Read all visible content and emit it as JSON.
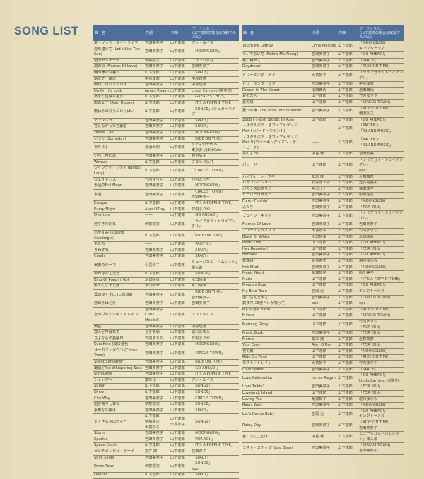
{
  "title": "SONG LIST",
  "headers": {
    "title": "曲　名",
    "lyricist": "作詞",
    "composer": "作曲",
    "artist": "アーティスト\n(山下達郎の場合は収録アルバム)"
  },
  "left_rows": [
    [
      "愛・イッツ・マイ・ライフ",
      "吉田美奈子",
      "山下達郎",
      "アン・ルイス"
    ],
    [
      "愛を描いて (Let's Kiss The Sun)",
      "吉田美奈子",
      "山下達郎",
      "「MOONGLOW」"
    ],
    [
      "愛のセレナーデ",
      "伊藤銀次",
      "山下達郎",
      "フランク永井"
    ],
    [
      "愛の炎 (Flames Of Love)",
      "吉田美奈子",
      "山下達郎",
      "吉田美奈子"
    ],
    [
      "朝の様な夕暮れ",
      "山下達郎",
      "山下達郎",
      "「SPACY」"
    ],
    [
      "朝まで一緒に",
      "中原理恵",
      "山下達郎",
      "中原理恵"
    ],
    [
      "明日にはグッドバイ",
      "吉田美奈子",
      "山下達郎",
      "中原理恵"
    ],
    [
      "Up On His Luck",
      "James Ragan",
      "山下達郎",
      "Linda Carriere (未発売)"
    ],
    [
      "あまく危険な香り",
      "山下達郎",
      "山下達郎",
      "「GREATEST HITS」"
    ],
    [
      "雨の女王 (Rain Queen)",
      "山下達郎",
      "山下達郎",
      "「IT'S A POPPIN' TIME」"
    ],
    [
      "雨は手のひらにいっぱい",
      "山下達郎",
      "山下達郎",
      "「SONGS」(シュガーベイブ)"
    ],
    [
      "アンブレラ",
      "吉田美奈子",
      "山下達郎",
      "「SPACY」"
    ],
    [
      "言えなかった言葉を",
      "吉田美奈子",
      "山下達郎",
      "「SPACY」"
    ],
    [
      "Yellow Cab",
      "吉田美奈子",
      "山下達郎",
      "「MOONGLOW」"
    ],
    [
      "いつか (Someday)",
      "吉田美奈子",
      "山下達郎",
      "「RIDE ON TIME」"
    ],
    [
      "祈り(O)",
      "加治木剛",
      "山下達郎",
      "ダディ竹千代 &\n東京おとぼけCats"
    ],
    [
      "いちご色の窓",
      "吉田美奈子",
      "山下達郎",
      "鹿沼弘子"
    ],
    [
      "Woman",
      "山下達郎",
      "山下達郎",
      "フランク永井"
    ],
    [
      "ウインディ・レディ (Windy Lady)",
      "山下達郎",
      "山下達郎",
      "「CIRCUS TOWN」"
    ],
    [
      "ウエイトレス",
      "竹内まりや",
      "山下達郎",
      "竹内まりや"
    ],
    [
      "永遠のFull Moon",
      "吉田美奈子",
      "山下達郎",
      "「MOONGLOW」"
    ],
    [
      "永遠に",
      "吉田美奈子",
      "山下達郎",
      "「CIRCUS TOWN」\n吉田美奈子"
    ],
    [
      "Escape",
      "山下達郎",
      "山下達郎",
      "「IT'S A POPPIN' TIME」"
    ],
    [
      "Every Night",
      "Alan O'Day",
      "山下達郎",
      "竹内まりや"
    ],
    [
      "Overture",
      "――",
      "山下達郎",
      "「GO AHEAD!」"
    ],
    [
      "遅すぎた別れ",
      "伊藤銀次",
      "山下達郎",
      "「ナイアガラ・トライアングル」"
    ],
    [
      "おやすみ (Kissing Goodnight)",
      "山下達郎",
      "山下達郎",
      "「RIDE ON TIME」"
    ],
    [
      "キスカ",
      "――",
      "山下達郎",
      "「PACIFIC」"
    ],
    [
      "きぬずれ",
      "吉田美奈子",
      "山下達郎",
      "「SPACY」"
    ],
    [
      "Candy",
      "吉田美奈子",
      "山下達郎",
      "「SPACY」"
    ],
    [
      "気楽のテーマ",
      "小島和子",
      "山下達郎",
      "ミュージカル「ハムレット」挿入歌"
    ],
    [
      "今日はなんだか",
      "山下達郎",
      "山下達郎",
      "「SONGS」"
    ],
    [
      "King Of Poppin' Roll",
      "水口晴幸",
      "山下達郎",
      "水口晴幸"
    ],
    [
      "キメてしまえば",
      "水口晴幸",
      "山下達郎",
      "水口晴幸"
    ],
    [
      "雲のゆくえに (Clouds)",
      "吉田美奈子",
      "山下達郎",
      "「RIDE ON TIME」\n吉田美奈子"
    ],
    [
      "恋の手ほどき",
      "吉田美奈子",
      "山下達郎",
      "吉田美奈子"
    ],
    [
      "恋のブギ・ウギ・トレイン",
      "吉田美奈子\nChris Mosdell",
      "山下達郎",
      "アン・ルイス"
    ],
    [
      "黄昏",
      "吉田美奈子",
      "山下達郎",
      "中原理恵"
    ],
    [
      "恋人と呼ばれて",
      "喜多条忠",
      "山下達郎",
      "堀川まゆみ"
    ],
    [
      "さよならの金曜日",
      "竹内まりや",
      "山下達郎",
      "竹内まりや"
    ],
    [
      "Sunshine (愛の金色)",
      "吉田美奈子",
      "山下達郎",
      "「MOONGLOW」"
    ],
    [
      "サーカス・タウン (Circus Town)",
      "吉田美奈子",
      "山下達郎",
      "「CIRCUS TOWN」"
    ],
    [
      "Silent Screamer",
      "吉田美奈子",
      "山下達郎",
      "「RIDE ON TIME」"
    ],
    [
      "潮騒 (The Whispering Sea)",
      "吉田美奈子",
      "山下達郎",
      "「GO AHEAD!」"
    ],
    [
      "Silhouette",
      "吉田美奈子",
      "山下達郎",
      "「IT'S A POPPIN' TIME」"
    ],
    [
      "シャンプー",
      "康珍化",
      "山下達郎",
      "アン・ルイス"
    ],
    [
      "Sugar",
      "山下達郎",
      "山下達郎",
      "「SONGS」"
    ],
    [
      "Show",
      "山下達郎",
      "山下達郎",
      "「SONGS」"
    ],
    [
      "City Way",
      "吉田美奈子",
      "山下達郎",
      "「CIRCUS TOWN」"
    ],
    [
      "過ぎ去りし日々",
      "伊藤銀次",
      "山下達郎",
      "「SONGS」"
    ],
    [
      "素敵な午後は",
      "吉田美奈子",
      "山下達郎",
      "「SPACY」"
    ],
    [
      "すてきなメロディー",
      "山下達郎\n伊藤銀次\n大貫妙子",
      "山下達郎\n大貫妙子",
      "「SONGS」"
    ],
    [
      "Storm",
      "吉田美奈子",
      "山下達郎",
      "「MOONGLOW」"
    ],
    [
      "Sparkle",
      "吉田美奈子",
      "山下達郎",
      "「FOR YOU」"
    ],
    [
      "Space Crush",
      "山下達郎",
      "山下達郎",
      "「IT'S A POPPIN' TIME」"
    ],
    [
      "センチメンタル・ボーイ",
      "荒井 康",
      "山下達郎",
      "桜田淳子"
    ],
    [
      "Solid Slider",
      "吉田美奈子",
      "山下達郎",
      "「SPACY」"
    ],
    [
      "Down Town",
      "伊藤銀次",
      "山下達郎",
      "「SONGS」\nepo"
    ],
    [
      "Dancer",
      "山下達郎",
      "山下達郎",
      "「SPACY」"
    ]
  ],
  "right_rows": [
    [
      "Touch Me Lightly",
      "Chris Mosdell",
      "山下達郎",
      "「MOONGLOW」\nキングトーンズ"
    ],
    [
      "ついておいで (Follow Me Along)",
      "吉田美奈子",
      "山下達郎",
      "「GO AHEAD!」"
    ],
    [
      "翼に乗せて",
      "吉田美奈子",
      "山下達郎",
      "「SPACY」"
    ],
    [
      "Daydream",
      "吉田美奈子",
      "山下達郎",
      "「RIDE ON TIME」"
    ],
    [
      "ドリーミング・デイ",
      "大貫妙子",
      "山下達郎",
      "「ナイアガラ・トライアングル」"
    ],
    [
      "ドリーミング・ラブ",
      "吉田美奈子",
      "山下達郎",
      "中原理恵"
    ],
    [
      "Dream In The Street",
      "池田典代",
      "山下達郎",
      "池田典代"
    ],
    [
      "夏の恋人",
      "山下達郎",
      "山下達郎",
      "竹内まりや"
    ],
    [
      "夏の陽",
      "山下達郎",
      "山下達郎",
      "「CIRCUS TOWN」"
    ],
    [
      "夏への扉 (The Door Into Summer)",
      "吉田美奈子",
      "山下達郎",
      "「RIDE ON TIME」\n難波弘之"
    ],
    [
      "2000トンの雨 (2000t Of Rain)",
      "山下達郎",
      "山下達郎",
      "「GO AHEAD!」"
    ],
    [
      "ノスタルジア・オブ・アイランド\nPart I (バード・ウインド)",
      "――",
      "山下達郎",
      "「PACIFIC」\n「ISLAND MUSIC」"
    ],
    [
      "ノスタルジア・オブ・アイランド\nPart II (ウォーキング・オン・ザ\n・ビーチ)",
      "――",
      "山下達郎",
      "「PACIFIC」\n「ISLAND MUSIC」"
    ],
    [
      "花のように",
      "中島 梓",
      "山下達郎",
      "岩崎宏美"
    ],
    [
      "パレード",
      "山下達郎",
      "山下達郎",
      "「ナイアガラ・トライアングル」\nepo"
    ],
    [
      "ハイティーン・ブギ",
      "松本 隆",
      "山下達郎",
      "近藤真彦"
    ],
    [
      "バイブレイション",
      "安井かずみ",
      "山下達郎",
      "笠井紀美子"
    ],
    [
      "バカンスの終りに",
      "島エイナ",
      "山下達郎",
      "桜田淳子"
    ],
    [
      "ヒーローはあなた",
      "吉田美奈子",
      "山下達郎",
      "中原理恵"
    ],
    [
      "Funky Flushin'",
      "吉田美奈子",
      "山下達郎",
      "「MOONGLOW」"
    ],
    [
      "ふたり",
      "吉田美奈子",
      "山下達郎",
      "「FOR YOU」"
    ],
    [
      "ブライン・キッド",
      "吉田美奈子",
      "山下達郎",
      "「ナイアガラ・トライアングル」"
    ],
    [
      "Flames Of Love",
      "吉田美奈子",
      "山下達郎",
      "吉田美奈子"
    ],
    [
      "ブルー・ホライズン",
      "大貫妙子",
      "山下達郎",
      "竹内まりや"
    ],
    [
      "Black Or White",
      "水口晴幸",
      "山下達郎",
      "水口晴幸"
    ],
    [
      "Paper Doll",
      "山下達郎",
      "山下達郎",
      "「GO AHEAD!」"
    ],
    [
      "Hey Reporter!",
      "山下達郎",
      "山下達郎",
      "「FOR YOU」"
    ],
    [
      "Bomber",
      "吉田美奈子",
      "山下達郎",
      "「GO AHEAD!」"
    ],
    [
      "花模様",
      "喜多条忠",
      "山下達郎",
      "堀川まゆみ"
    ],
    [
      "Hot Shot",
      "吉田美奈子",
      "山下達郎",
      "「MOONGLOW」"
    ],
    [
      "Magic Night",
      "竜真知子",
      "山下達郎",
      "原久美子"
    ],
    [
      "Marie",
      "山下達郎",
      "山下達郎",
      "「IT'S A POPPIN' TIME」"
    ],
    [
      "Monday Blue",
      "山下達郎",
      "山下達郎",
      "「GO AHEAD!」"
    ],
    [
      "My Blue Train",
      "吉岡 治",
      "山下達郎",
      "キングトーンズ"
    ],
    [
      "迷い込んだ街と",
      "吉田美奈子",
      "山下達郎",
      "「CIRCUS TOWN」"
    ],
    [
      "真夜中に8度ベルが鳴って",
      "epo",
      "山下達郎",
      "epo"
    ],
    [
      "My Sugar Babe",
      "山下達郎",
      "山下達郎",
      "「RIDE ON TIME」"
    ],
    [
      "Minnie",
      "山下達郎",
      "山下達郎",
      "「CIRCUS TOWN」"
    ],
    [
      "Morning Glory",
      "山下達郎",
      "山下達郎",
      "竹内まりや\n「FOR YOU」"
    ],
    [
      "Music Book",
      "吉田美奈子",
      "山下達郎",
      "「FOR YOU」"
    ],
    [
      "Momo",
      "松本 隆",
      "山下達郎",
      "近藤真彦"
    ],
    [
      "Your Eyes",
      "Alan O'Day",
      "山下達郎",
      "「FOR YOU」"
    ],
    [
      "夜の翼",
      "山下達郎",
      "山下達郎",
      "「MOONGLOW」"
    ],
    [
      "Ride On Time",
      "山下達郎",
      "山下達郎",
      "「RIDE ON TIME」"
    ],
    [
      "ラスト・トレイン",
      "大貫妙子",
      "山下達郎",
      "竹内まりや"
    ],
    [
      "Love Space",
      "吉田美奈子",
      "山下達郎",
      "「SPACY」"
    ],
    [
      "Love Celebration",
      "James Ragan",
      "山下達郎",
      "「GO AHEAD!」\nLinda Carriere (未発売)"
    ],
    [
      "Love Talkin'",
      "吉田美奈子",
      "山下達郎",
      "「FOR YOU」"
    ],
    [
      "Loveland, Island",
      "山下達郎",
      "山下達郎",
      "「FOR YOU」"
    ],
    [
      "Loving You",
      "竜真知子",
      "山下達郎",
      "堀川まゆみ"
    ],
    [
      "Rainy Walk",
      "吉田美奈子",
      "山下達郎",
      "「MOONGLOW」"
    ],
    [
      "Let's Dance Baby",
      "吉岡 治",
      "山下達郎",
      "「GO AHEAD!」\nキングトーンズ"
    ],
    [
      "Rainy Day",
      "吉田美奈子",
      "山下達郎",
      "「RIDE ON TIME」\n吉田美奈子"
    ],
    [
      "若いってことは",
      "中島 梓",
      "山下達郎",
      "ミュージカル「ハムレット」挿入歌"
    ],
    [
      "ラスト・ステップ (Last Step)",
      "吉田美奈子",
      "山下達郎",
      "「CIRCUS TOWN」\n吉田美奈子"
    ]
  ]
}
